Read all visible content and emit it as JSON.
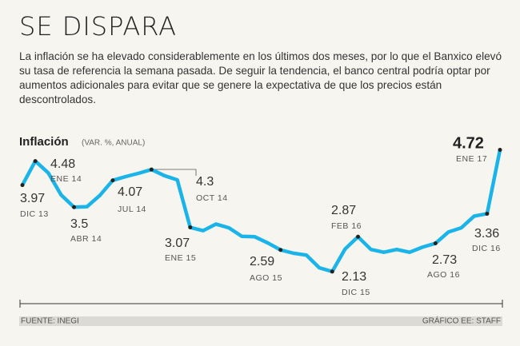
{
  "chart_data": {
    "type": "line",
    "title": "SE DISPARA",
    "subtitle": "La inflación se ha elevado considerablemente en los últimos dos meses, por lo que el Banxico elevó su tasa de referencia la semana pasada. De seguir la tendencia, el banco central podría optar por aumentos adicionales para evitar que se genere la expectativa de que los precios están descontrolados.",
    "y_label": "Inflación",
    "y_unit": "(VAR. %, ANUAL)",
    "categories": [
      "DIC 13",
      "ENE 14",
      null,
      null,
      "ABR 14",
      null,
      null,
      "JUL 14",
      null,
      null,
      "OCT 14",
      null,
      null,
      "ENE 15",
      null,
      null,
      null,
      null,
      null,
      null,
      "AGO 15",
      null,
      null,
      null,
      "DIC 15",
      null,
      "FEB 16",
      null,
      null,
      null,
      null,
      null,
      "AGO 16",
      null,
      null,
      null,
      "DIC 16",
      "ENE 17"
    ],
    "values": [
      3.97,
      4.48,
      4.23,
      3.76,
      3.5,
      3.51,
      3.75,
      4.07,
      4.15,
      4.22,
      4.3,
      4.17,
      4.08,
      3.07,
      3.0,
      3.14,
      3.06,
      2.88,
      2.87,
      2.74,
      2.59,
      2.52,
      2.48,
      2.21,
      2.13,
      2.61,
      2.87,
      2.6,
      2.54,
      2.6,
      2.54,
      2.65,
      2.73,
      2.97,
      3.06,
      3.31,
      3.36,
      4.72
    ],
    "color": "#1ab4e8",
    "ylim": [
      1.6,
      5.0
    ],
    "source": "FUENTE: INEGI",
    "credit": "GRÁFICO EE: STAFF"
  }
}
